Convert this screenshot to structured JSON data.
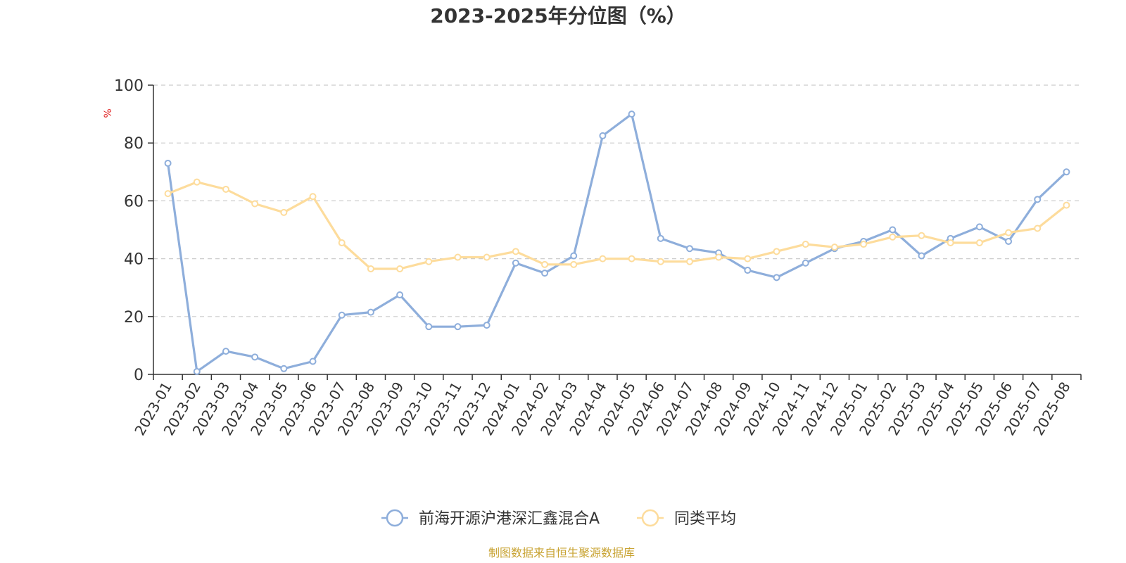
{
  "chart_data": {
    "type": "line",
    "title": "2023-2025年分位图（%）",
    "ylabel": "%",
    "ylim": [
      0,
      100
    ],
    "yticks": [
      0,
      20,
      40,
      60,
      80,
      100
    ],
    "grid": "horizontal-dashed",
    "legend_position": "bottom-center",
    "categories": [
      "2023-01",
      "2023-02",
      "2023-03",
      "2023-04",
      "2023-05",
      "2023-06",
      "2023-07",
      "2023-08",
      "2023-09",
      "2023-10",
      "2023-11",
      "2023-12",
      "2024-01",
      "2024-02",
      "2024-03",
      "2024-04",
      "2024-05",
      "2024-06",
      "2024-07",
      "2024-08",
      "2024-09",
      "2024-10",
      "2024-11",
      "2024-12",
      "2025-01",
      "2025-02",
      "2025-03",
      "2025-04",
      "2025-05",
      "2025-06",
      "2025-07",
      "2025-08"
    ],
    "series": [
      {
        "name": "前海开源沪港深汇鑫混合A",
        "color": "#8eaedb",
        "values": [
          73,
          1,
          8,
          6,
          2,
          4.5,
          20.5,
          21.5,
          27.5,
          16.5,
          16.5,
          17,
          38.5,
          35,
          41,
          82.5,
          90,
          47,
          43.5,
          42,
          36,
          33.5,
          38.5,
          43.5,
          46,
          50,
          41,
          47,
          51,
          46,
          60.5,
          70
        ]
      },
      {
        "name": "同类平均",
        "color": "#fddc9c",
        "values": [
          62.5,
          66.5,
          64,
          59,
          56,
          61.5,
          45.5,
          36.5,
          36.5,
          39,
          40.5,
          40.5,
          42.5,
          38,
          38,
          40,
          40,
          39,
          39,
          40.5,
          40,
          42.5,
          45,
          44,
          45,
          47.5,
          48,
          45.5,
          45.5,
          49,
          50.5,
          58.5
        ]
      }
    ],
    "source": "制图数据来自恒生聚源数据库",
    "source_color": "#c8a332",
    "ylabel_color": "#e02020"
  }
}
